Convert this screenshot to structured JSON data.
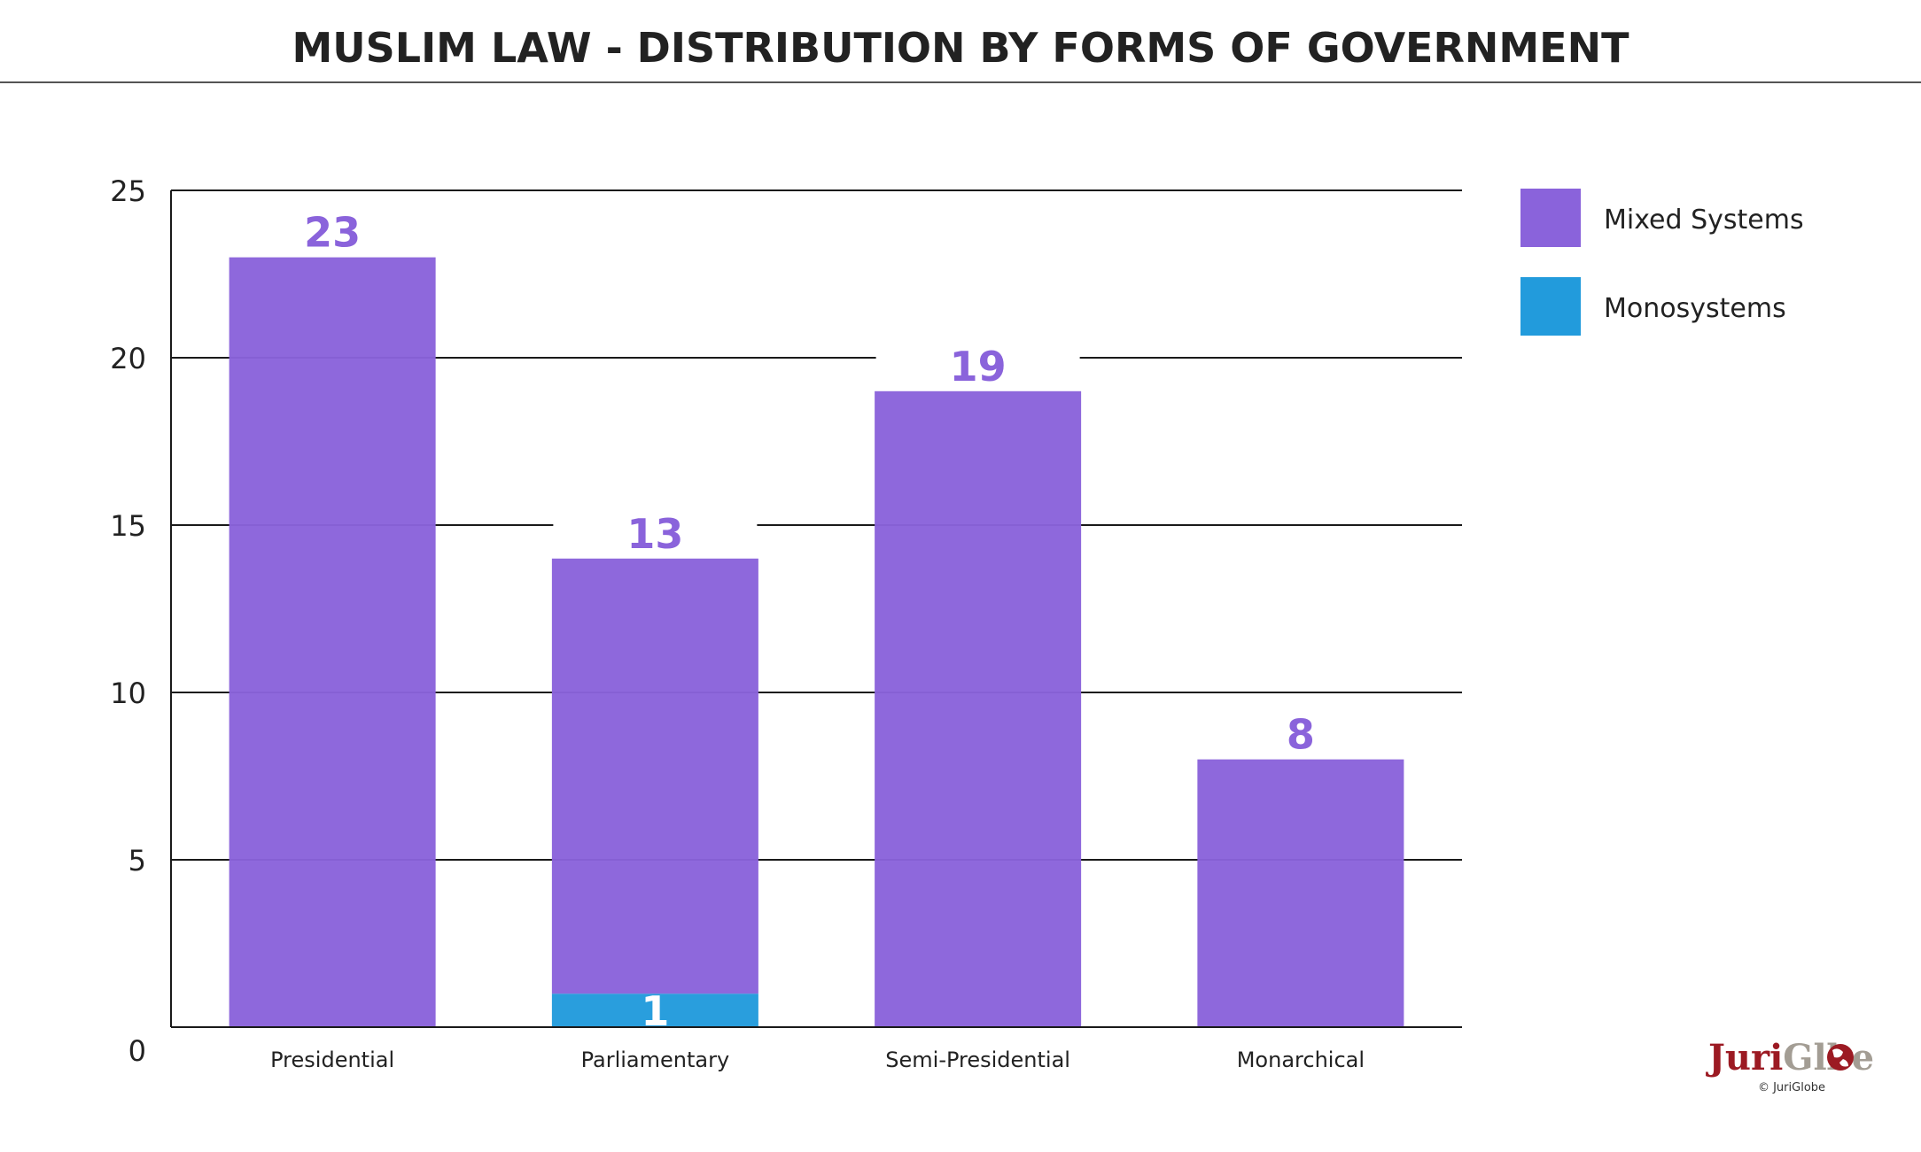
{
  "chart_data": {
    "type": "bar",
    "stacked": true,
    "title": "MUSLIM LAW - DISTRIBUTION BY FORMS OF GOVERNMENT",
    "xlabel": "",
    "ylabel": "",
    "ylim": [
      0,
      25
    ],
    "yticks": [
      "0",
      "5",
      "10",
      "15",
      "20",
      "25"
    ],
    "grid": true,
    "legend_position": "top-right",
    "categories": [
      "Presidential",
      "Parliamentary",
      "Semi-Presidential",
      "Monarchical"
    ],
    "series": [
      {
        "name": "Monosystems",
        "color": "#229bdc",
        "values": [
          0,
          1,
          0,
          0
        ]
      },
      {
        "name": "Mixed Systems",
        "color": "#8a63db",
        "values": [
          23,
          13,
          19,
          8
        ]
      }
    ],
    "legend_order": [
      "Mixed Systems",
      "Monosystems"
    ]
  },
  "branding": {
    "logo_juri": "Juri",
    "logo_globe": "Gl",
    "logo_end": "be",
    "copyright": "© JuriGlobe",
    "logo_color_1": "#9c1a23",
    "logo_color_2": "#a39d94"
  }
}
